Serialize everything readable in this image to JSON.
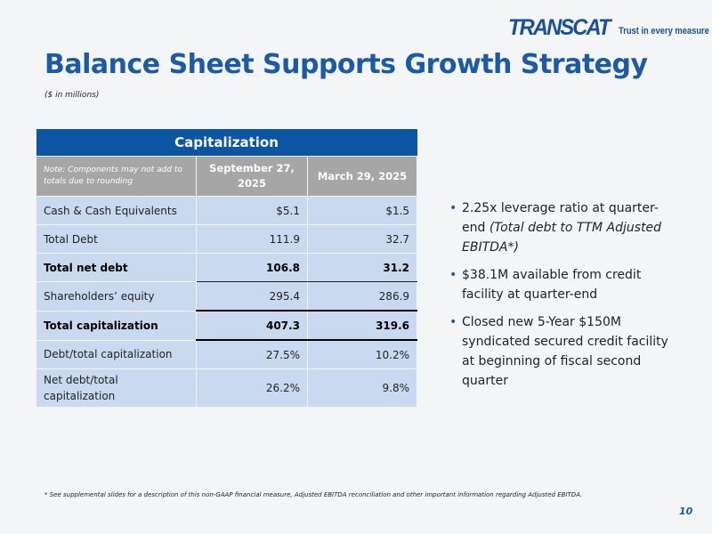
{
  "logo": {
    "brand": "TRANSCAT",
    "tagline": "Trust in every measure"
  },
  "title": "Balance Sheet Supports Growth Strategy",
  "subtitle": "($ in millions)",
  "table": {
    "caption": "Capitalization",
    "note": "Note: Components may not add to totals due to rounding",
    "columns": [
      "September 27, 2025",
      "March 29, 2025"
    ],
    "rows": [
      {
        "label": "Cash & Cash Equivalents",
        "values": [
          "$5.1",
          "$1.5"
        ]
      },
      {
        "label": "Total Debt",
        "values": [
          "111.9",
          "32.7"
        ]
      },
      {
        "label": "Total net debt",
        "values": [
          "106.8",
          "31.2"
        ]
      },
      {
        "label": "Shareholders’ equity",
        "values": [
          "295.4",
          "286.9"
        ]
      },
      {
        "label": "Total capitalization",
        "values": [
          "407.3",
          "319.6"
        ]
      },
      {
        "label": "Debt/total capitalization",
        "values": [
          "27.5%",
          "10.2%"
        ]
      },
      {
        "label": "Net debt/total capitalization",
        "values": [
          "26.2%",
          "9.8%"
        ]
      }
    ]
  },
  "bullets": [
    {
      "text": "2.25x leverage ratio at quarter-end ",
      "italic": "(Total debt to TTM Adjusted EBITDA*)"
    },
    {
      "text": "$38.1M available from credit facility at quarter-end"
    },
    {
      "text": "Closed new 5-Year $150M syndicated secured credit facility at beginning of fiscal second quarter"
    }
  ],
  "footnote": "* See supplemental slides for a description of this non-GAAP financial measure, Adjusted EBITDA reconciliation and other important information regarding Adjusted EBITDA.",
  "page_number": "10"
}
